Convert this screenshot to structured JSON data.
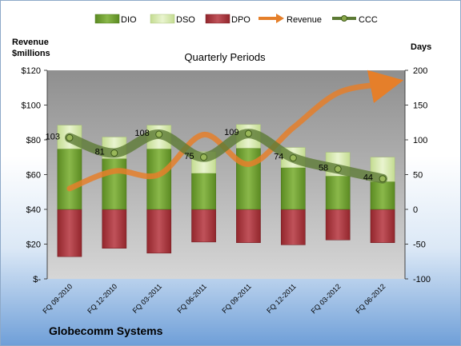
{
  "company": "Globecomm Systems",
  "chart_data": {
    "type": "bar",
    "title": "Quarterly Periods",
    "categories": [
      "FQ 09-2010",
      "FQ 12-2010",
      "FQ 03-2011",
      "FQ 06-2011",
      "FQ 09-2011",
      "FQ 12-2011",
      "FQ 03-2012",
      "FQ 06-2012"
    ],
    "left_axis": {
      "title": [
        "Revenue",
        "$millions"
      ],
      "ylim": [
        0,
        120
      ],
      "ticks": [
        "$-",
        "$20",
        "$40",
        "$60",
        "$80",
        "$100",
        "$120"
      ]
    },
    "right_axis": {
      "title": "Days",
      "ylim": [
        -100,
        200
      ],
      "ticks": [
        "-100",
        "-50",
        "0",
        "50",
        "100",
        "150",
        "200"
      ]
    },
    "series": [
      {
        "name": "DIO",
        "axis": "right",
        "values": [
          87,
          73,
          87,
          52,
          88,
          60,
          48,
          40
        ],
        "color": "#6a9a2a"
      },
      {
        "name": "DSO",
        "axis": "right",
        "values": [
          34,
          31,
          34,
          31,
          34,
          29,
          34,
          35
        ],
        "color": "#d3e6a9"
      },
      {
        "name": "DPO",
        "axis": "right",
        "values": [
          -68,
          -56,
          -63,
          -47,
          -48,
          -51,
          -44,
          -48
        ],
        "color": "#a8333a"
      },
      {
        "name": "Revenue",
        "axis": "left",
        "values": [
          52,
          62,
          60,
          83,
          66,
          87,
          107,
          112
        ],
        "color": "#e57f2a"
      },
      {
        "name": "CCC",
        "axis": "right",
        "values": [
          103,
          81,
          108,
          75,
          109,
          74,
          58,
          44
        ],
        "color": "#4e6a2a"
      }
    ],
    "ccc_labels": [
      "103",
      "81",
      "108",
      "75",
      "109",
      "74",
      "58",
      "44"
    ],
    "grid": false,
    "legend": "top"
  }
}
